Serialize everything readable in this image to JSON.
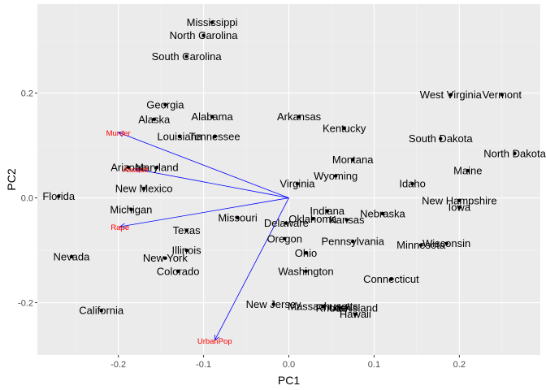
{
  "chart_data": {
    "type": "scatter",
    "xlabel": "PC1",
    "ylabel": "PC2",
    "xlim": [
      -0.295,
      0.295
    ],
    "ylim": [
      -0.3,
      0.37
    ],
    "x_ticks": [
      -0.2,
      -0.1,
      0.0,
      0.1,
      0.2
    ],
    "x_tick_labels": [
      "-0.2",
      "-0.1",
      "0.0",
      "0.1",
      "0.2"
    ],
    "y_ticks": [
      -0.2,
      0.0,
      0.2
    ],
    "y_tick_labels": [
      "-0.2",
      "0.0",
      "0.2"
    ],
    "grid": true,
    "colors": {
      "panel": "#ebebeb",
      "grid_major": "#ffffff",
      "grid_minor": "#f5f5f5",
      "points": "#000000",
      "arrows": "#0000ff",
      "variable_labels": "#ff0000"
    },
    "points": [
      {
        "label": "Mississippi",
        "x": -0.09,
        "y": 0.335
      },
      {
        "label": "North Carolina",
        "x": -0.1,
        "y": 0.31
      },
      {
        "label": "South Carolina",
        "x": -0.12,
        "y": 0.27
      },
      {
        "label": "Georgia",
        "x": -0.145,
        "y": 0.178
      },
      {
        "label": "Alaska",
        "x": -0.158,
        "y": 0.15
      },
      {
        "label": "Alabama",
        "x": -0.09,
        "y": 0.155
      },
      {
        "label": "Louisiana",
        "x": -0.128,
        "y": 0.117
      },
      {
        "label": "Tennessee",
        "x": -0.087,
        "y": 0.117
      },
      {
        "label": "Arkansas",
        "x": 0.012,
        "y": 0.155
      },
      {
        "label": "Kentucky",
        "x": 0.065,
        "y": 0.133
      },
      {
        "label": "West Virginia",
        "x": 0.19,
        "y": 0.197
      },
      {
        "label": "Vermont",
        "x": 0.25,
        "y": 0.197
      },
      {
        "label": "South Dakota",
        "x": 0.178,
        "y": 0.113
      },
      {
        "label": "North Dakota",
        "x": 0.265,
        "y": 0.085
      },
      {
        "label": "Montana",
        "x": 0.075,
        "y": 0.073
      },
      {
        "label": "Maine",
        "x": 0.21,
        "y": 0.052
      },
      {
        "label": "Maryland",
        "x": -0.155,
        "y": 0.058
      },
      {
        "label": "Arizona",
        "x": -0.188,
        "y": 0.058
      },
      {
        "label": "Wyoming",
        "x": 0.055,
        "y": 0.042
      },
      {
        "label": "Idaho",
        "x": 0.145,
        "y": 0.027
      },
      {
        "label": "Virginia",
        "x": 0.01,
        "y": 0.027
      },
      {
        "label": "New Mexico",
        "x": -0.17,
        "y": 0.018
      },
      {
        "label": "Florida",
        "x": -0.27,
        "y": 0.003
      },
      {
        "label": "New Hampshire",
        "x": 0.2,
        "y": -0.005
      },
      {
        "label": "Iowa",
        "x": 0.2,
        "y": -0.018
      },
      {
        "label": "Michigan",
        "x": -0.185,
        "y": -0.022
      },
      {
        "label": "Indiana",
        "x": 0.045,
        "y": -0.025
      },
      {
        "label": "Nebraska",
        "x": 0.11,
        "y": -0.03
      },
      {
        "label": "Missouri",
        "x": -0.06,
        "y": -0.038
      },
      {
        "label": "Oklahoma",
        "x": 0.028,
        "y": -0.04
      },
      {
        "label": "Kansas",
        "x": 0.068,
        "y": -0.042
      },
      {
        "label": "Delaware",
        "x": -0.003,
        "y": -0.048
      },
      {
        "label": "Texas",
        "x": -0.12,
        "y": -0.062
      },
      {
        "label": "Oregon",
        "x": -0.005,
        "y": -0.078
      },
      {
        "label": "Pennsylvania",
        "x": 0.075,
        "y": -0.083
      },
      {
        "label": "Wisconsin",
        "x": 0.185,
        "y": -0.087
      },
      {
        "label": "Minnesota",
        "x": 0.155,
        "y": -0.09
      },
      {
        "label": "Illinois",
        "x": -0.12,
        "y": -0.1
      },
      {
        "label": "Ohio",
        "x": 0.02,
        "y": -0.105
      },
      {
        "label": "Nevada",
        "x": -0.255,
        "y": -0.112
      },
      {
        "label": "New York",
        "x": -0.145,
        "y": -0.115
      },
      {
        "label": "Washington",
        "x": 0.02,
        "y": -0.14
      },
      {
        "label": "Colorado",
        "x": -0.13,
        "y": -0.14
      },
      {
        "label": "Connecticut",
        "x": 0.12,
        "y": -0.155
      },
      {
        "label": "New Jersey",
        "x": -0.018,
        "y": -0.203
      },
      {
        "label": "Massachusetts",
        "x": 0.04,
        "y": -0.207
      },
      {
        "label": "Utah",
        "x": 0.06,
        "y": -0.21
      },
      {
        "label": "Rhode Island",
        "x": 0.068,
        "y": -0.21
      },
      {
        "label": "Hawaii",
        "x": 0.078,
        "y": -0.222
      },
      {
        "label": "California",
        "x": -0.22,
        "y": -0.215
      }
    ],
    "arrows": [
      {
        "label": "Murder",
        "x": -0.2,
        "y": 0.125
      },
      {
        "label": "Assault",
        "x": -0.18,
        "y": 0.055
      },
      {
        "label": "Rape",
        "x": -0.198,
        "y": -0.055
      },
      {
        "label": "UrbanPop",
        "x": -0.087,
        "y": -0.272
      }
    ]
  }
}
